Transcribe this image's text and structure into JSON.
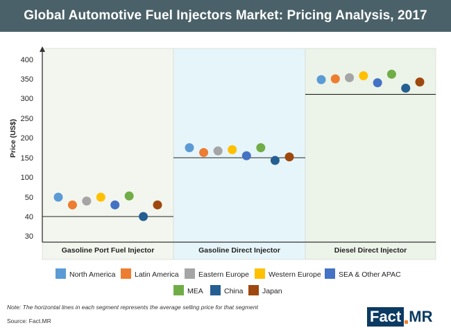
{
  "title": "Global Automotive Fuel Injectors Market: Pricing Analysis, 2017",
  "chart_data": {
    "type": "scatter",
    "title": "Global Automotive Fuel Injectors Market: Pricing Analysis, 2017",
    "ylabel": "Price (US$)",
    "y_ticks": [
      "400",
      "350",
      "300",
      "250",
      "200",
      "150",
      "100",
      "50",
      "40",
      "30"
    ],
    "categories": [
      "Gasoline Port Fuel Injector",
      "Gasoline Direct Injector",
      "Diesel Direct Injector"
    ],
    "average_lines": [
      40,
      150,
      310
    ],
    "series": [
      {
        "name": "North America",
        "color": "#5b9bd5",
        "values": [
          50,
          175,
          348
        ]
      },
      {
        "name": "Latin America",
        "color": "#ed7d31",
        "values": [
          46,
          163,
          350
        ]
      },
      {
        "name": "Eastern Europe",
        "color": "#a5a5a5",
        "values": [
          48,
          167,
          353
        ]
      },
      {
        "name": "Western Europe",
        "color": "#ffc000",
        "values": [
          50,
          170,
          358
        ]
      },
      {
        "name": "SEA & Other APAC",
        "color": "#4472c4",
        "values": [
          46,
          155,
          340
        ]
      },
      {
        "name": "MEA",
        "color": "#70ad47",
        "values": [
          53,
          175,
          362
        ]
      },
      {
        "name": "China",
        "color": "#255e91",
        "values": [
          40,
          143,
          326
        ]
      },
      {
        "name": "Japan",
        "color": "#9e480e",
        "values": [
          46,
          152,
          342
        ]
      }
    ],
    "note": "Note: The horizontal lines in each segment represents the average selling price for that segment",
    "source": "Source: Fact.MR"
  },
  "logo": {
    "left": "Fact",
    "right": "MR"
  },
  "colors": {
    "title_bar": "#4a6169",
    "panel_1": "#f3f6ee",
    "panel_2": "#e6f5f9",
    "panel_3": "#ecf3e8"
  }
}
